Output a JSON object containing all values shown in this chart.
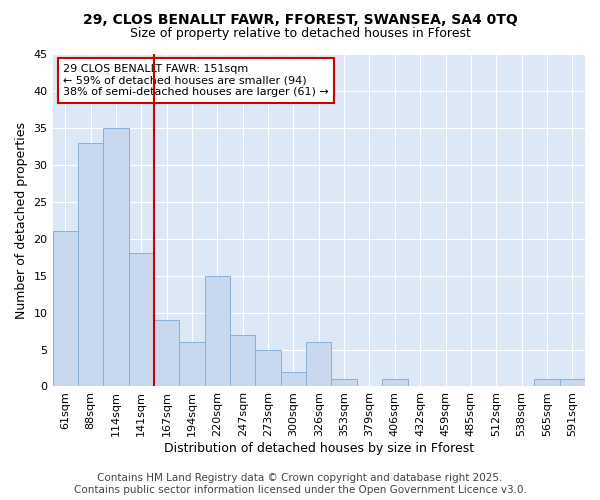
{
  "title1": "29, CLOS BENALLT FAWR, FFOREST, SWANSEA, SA4 0TQ",
  "title2": "Size of property relative to detached houses in Fforest",
  "xlabel": "Distribution of detached houses by size in Fforest",
  "ylabel": "Number of detached properties",
  "categories": [
    "61sqm",
    "88sqm",
    "114sqm",
    "141sqm",
    "167sqm",
    "194sqm",
    "220sqm",
    "247sqm",
    "273sqm",
    "300sqm",
    "326sqm",
    "353sqm",
    "379sqm",
    "406sqm",
    "432sqm",
    "459sqm",
    "485sqm",
    "512sqm",
    "538sqm",
    "565sqm",
    "591sqm"
  ],
  "values": [
    21,
    33,
    35,
    18,
    9,
    6,
    15,
    7,
    5,
    2,
    6,
    1,
    0,
    1,
    0,
    0,
    0,
    0,
    0,
    1,
    1
  ],
  "bar_color": "#c8d9ef",
  "bar_edge_color": "#8ab0d8",
  "property_line_x": 3.5,
  "property_line_color": "#cc0000",
  "annotation_text": "29 CLOS BENALLT FAWR: 151sqm\n← 59% of detached houses are smaller (94)\n38% of semi-detached houses are larger (61) →",
  "annotation_box_color": "#ffffff",
  "annotation_box_edge": "#cc0000",
  "ylim": [
    0,
    45
  ],
  "yticks": [
    0,
    5,
    10,
    15,
    20,
    25,
    30,
    35,
    40,
    45
  ],
  "figure_bg": "#ffffff",
  "plot_bg_color": "#dce8f5",
  "grid_color": "#ffffff",
  "title_fontsize": 10,
  "axis_label_fontsize": 9,
  "tick_fontsize": 8,
  "footer_fontsize": 7.5,
  "footer": "Contains HM Land Registry data © Crown copyright and database right 2025.\nContains public sector information licensed under the Open Government Licence v3.0."
}
